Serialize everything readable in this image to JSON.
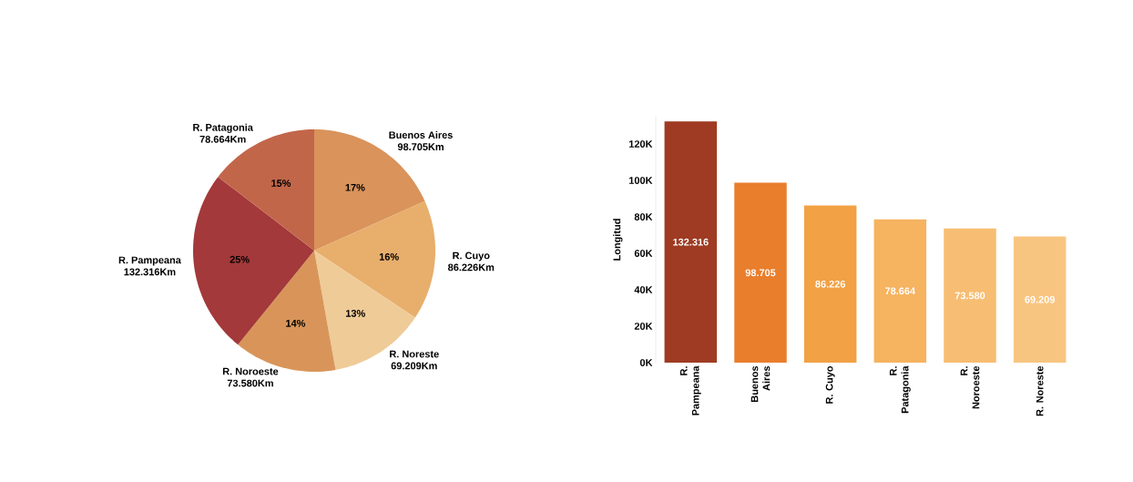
{
  "chart_data": [
    {
      "type": "pie",
      "categories": [
        "Buenos Aires",
        "R. Cuyo",
        "R. Noreste",
        "R. Noroeste",
        "R. Pampeana",
        "R. Patagonia"
      ],
      "values": [
        98705,
        86226,
        69209,
        73580,
        132316,
        78664
      ],
      "colors": [
        "#d9935b",
        "#e8ae6c",
        "#efcb98",
        "#d99559",
        "#a3393a",
        "#c2664a"
      ],
      "value_labels": [
        "98.705Km",
        "86.226Km",
        "69.209Km",
        "73.580Km",
        "132.316Km",
        "78.664Km"
      ],
      "annotations": [
        "17%",
        "16%",
        "13%",
        "14%",
        "25%",
        "15%"
      ]
    },
    {
      "type": "bar",
      "categories": [
        "R. Pampeana",
        "Buenos Aires",
        "R. Cuyo",
        "R. Patagonia",
        "R. Noroeste",
        "R. Noreste"
      ],
      "values": [
        132316,
        98705,
        86226,
        78664,
        73580,
        69209
      ],
      "colors": [
        "#9e3b22",
        "#e97e2c",
        "#f2a144",
        "#f6b360",
        "#f7bd72",
        "#f8c580"
      ],
      "value_labels": [
        "132.316",
        "98.705",
        "86.226",
        "78.664",
        "73.580",
        "69.209"
      ],
      "ylabel": "Longitud",
      "ylim": [
        0,
        135000
      ],
      "yticks": [
        {
          "value": 0,
          "label": "0K"
        },
        {
          "value": 20000,
          "label": "20K"
        },
        {
          "value": 40000,
          "label": "40K"
        },
        {
          "value": 60000,
          "label": "60K"
        },
        {
          "value": 80000,
          "label": "80K"
        },
        {
          "value": 100000,
          "label": "100K"
        },
        {
          "value": 120000,
          "label": "120K"
        }
      ],
      "grid": false
    }
  ]
}
